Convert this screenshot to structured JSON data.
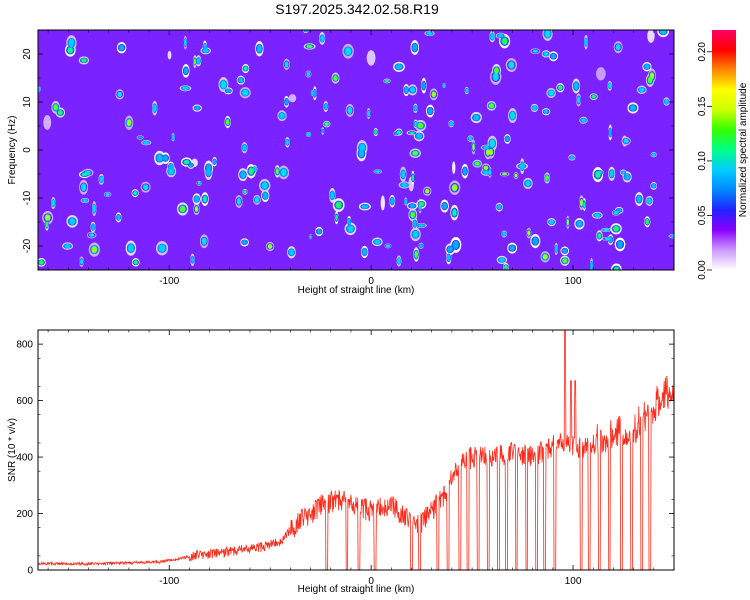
{
  "figure": {
    "title": "S197.2025.342.02.58.R19"
  },
  "chart_data": [
    {
      "type": "heatmap",
      "title": "S197.2025.342.02.58.R19",
      "xlabel": "Height of straight line (km)",
      "ylabel": "Frequency (Hz)",
      "xlim": [
        -165,
        150
      ],
      "ylim": [
        -25,
        25
      ],
      "x_ticks": [
        -100,
        0,
        100
      ],
      "y_ticks": [
        -20,
        -10,
        0,
        10,
        20
      ],
      "colorbar": {
        "label": "Normalized spectral amplitude",
        "range": [
          0.0,
          0.22
        ],
        "ticks": [
          0.0,
          0.05,
          0.1,
          0.15,
          0.2
        ],
        "tick_labels": [
          "0.00",
          "0.05",
          "0.10",
          "0.15",
          "0.20"
        ],
        "palette": [
          "#ffffff",
          "#cc99ff",
          "#8800ff",
          "#2222ff",
          "#0088ff",
          "#00ccff",
          "#00ff88",
          "#33ff00",
          "#ccff00",
          "#ffff00",
          "#ff8800",
          "#ff0000",
          "#ff0066"
        ]
      },
      "description": "speckled noise field, mostly purple/blue with sparse cyan-green peaks"
    },
    {
      "type": "line",
      "xlabel": "Height of straight line (km)",
      "ylabel": "SNR (10 * v/v)",
      "xlim": [
        -165,
        150
      ],
      "ylim": [
        0,
        850
      ],
      "x_ticks": [
        -100,
        0,
        100
      ],
      "y_ticks": [
        0,
        200,
        400,
        600,
        800
      ],
      "series": [
        {
          "name": "SNR",
          "color": "#ff2a1a",
          "x": [
            -165,
            -140,
            -120,
            -105,
            -95,
            -85,
            -75,
            -65,
            -55,
            -45,
            -40,
            -35,
            -30,
            -25,
            -20,
            -15,
            -10,
            -5,
            0,
            5,
            10,
            15,
            20,
            25,
            30,
            35,
            40,
            45,
            50,
            55,
            60,
            65,
            70,
            75,
            80,
            85,
            90,
            95,
            100,
            105,
            110,
            115,
            120,
            125,
            130,
            135,
            140,
            145,
            150
          ],
          "y": [
            22,
            22,
            25,
            28,
            40,
            55,
            60,
            70,
            80,
            100,
            140,
            180,
            200,
            230,
            240,
            250,
            230,
            220,
            210,
            220,
            230,
            200,
            170,
            170,
            210,
            250,
            320,
            380,
            400,
            400,
            400,
            410,
            420,
            410,
            400,
            420,
            440,
            450,
            440,
            430,
            440,
            450,
            470,
            460,
            470,
            520,
            560,
            600,
            620
          ],
          "peaks": [
            {
              "x": 96,
              "y": 850
            },
            {
              "x": 99,
              "y": 670
            },
            {
              "x": 101,
              "y": 670
            }
          ],
          "dropouts_to_zero": [
            -22,
            -12,
            -6,
            2,
            20,
            24,
            33,
            38,
            44,
            48,
            53,
            58,
            63,
            67,
            72,
            77,
            82,
            86,
            91,
            104,
            108,
            113,
            118,
            124,
            129,
            134,
            138
          ]
        }
      ]
    }
  ]
}
